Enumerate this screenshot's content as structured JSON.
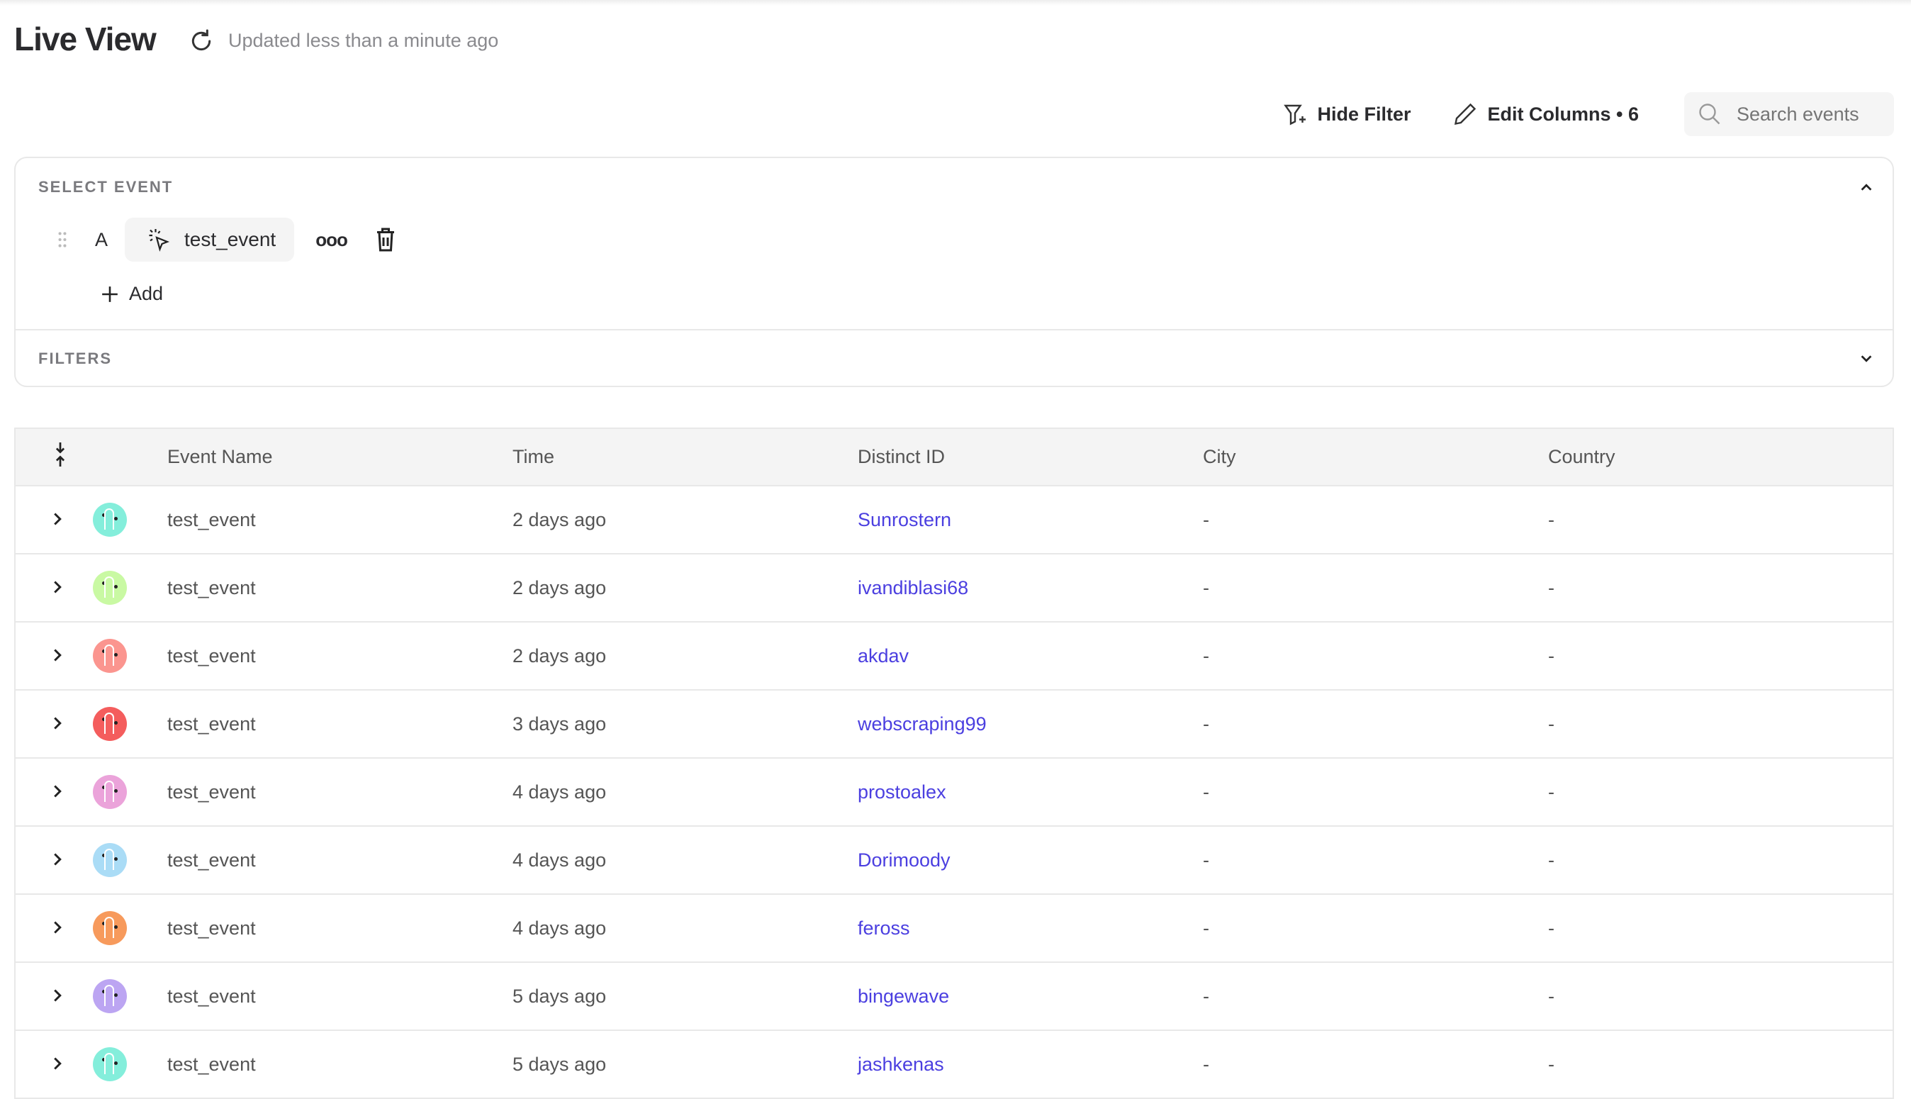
{
  "header": {
    "title": "Live View",
    "updated": "Updated less than a minute ago"
  },
  "toolbar": {
    "hide_filter": "Hide Filter",
    "edit_columns": "Edit Columns • 6",
    "search_placeholder": "Search events"
  },
  "select_event": {
    "label": "SELECT EVENT",
    "letter": "A",
    "event": "test_event",
    "more": "ooo",
    "add": "Add"
  },
  "filters": {
    "label": "FILTERS"
  },
  "table": {
    "columns": [
      "Event Name",
      "Time",
      "Distinct ID",
      "City",
      "Country"
    ],
    "rows": [
      {
        "event": "test_event",
        "time": "2 days ago",
        "distinct_id": "Sunrostern",
        "city": "-",
        "country": "-",
        "avatar_color": "#84eedb"
      },
      {
        "event": "test_event",
        "time": "2 days ago",
        "distinct_id": "ivandiblasi68",
        "city": "-",
        "country": "-",
        "avatar_color": "#c9f9a3"
      },
      {
        "event": "test_event",
        "time": "2 days ago",
        "distinct_id": "akdav",
        "city": "-",
        "country": "-",
        "avatar_color": "#fb958f"
      },
      {
        "event": "test_event",
        "time": "3 days ago",
        "distinct_id": "webscraping99",
        "city": "-",
        "country": "-",
        "avatar_color": "#f45d5d"
      },
      {
        "event": "test_event",
        "time": "4 days ago",
        "distinct_id": "prostoalex",
        "city": "-",
        "country": "-",
        "avatar_color": "#eba3da"
      },
      {
        "event": "test_event",
        "time": "4 days ago",
        "distinct_id": "Dorimoody",
        "city": "-",
        "country": "-",
        "avatar_color": "#aadcf6"
      },
      {
        "event": "test_event",
        "time": "4 days ago",
        "distinct_id": "feross",
        "city": "-",
        "country": "-",
        "avatar_color": "#f79a5c"
      },
      {
        "event": "test_event",
        "time": "5 days ago",
        "distinct_id": "bingewave",
        "city": "-",
        "country": "-",
        "avatar_color": "#bca5f2"
      },
      {
        "event": "test_event",
        "time": "5 days ago",
        "distinct_id": "jashkenas",
        "city": "-",
        "country": "-",
        "avatar_color": "#84eedb"
      }
    ]
  }
}
